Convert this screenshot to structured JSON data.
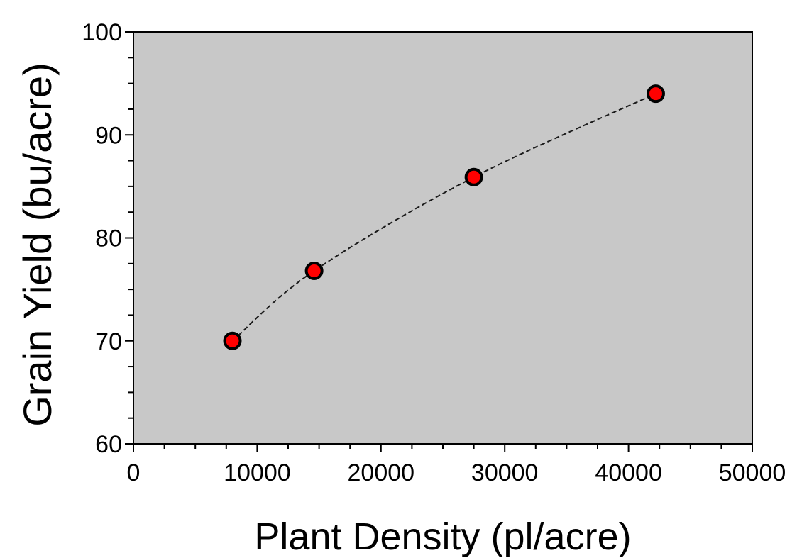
{
  "chart_data": {
    "type": "scatter",
    "title": "",
    "xlabel": "Plant Density (pl/acre)",
    "ylabel": "Grain Yield (bu/acre)",
    "xlim": [
      0,
      50000
    ],
    "ylim": [
      60,
      100
    ],
    "x_ticks": [
      0,
      10000,
      20000,
      30000,
      40000,
      50000
    ],
    "y_ticks": [
      60,
      70,
      80,
      90,
      100
    ],
    "x_minor_step": 2500,
    "y_minor_step": 2.5,
    "grid": false,
    "legend": "none",
    "plot_background": "#c8c8c8",
    "marker_color": "#ff0000",
    "marker_edge_color": "#000000",
    "trendline_style": "dashed",
    "series": [
      {
        "x": [
          8000,
          14600,
          27500,
          42200
        ],
        "y": [
          70.0,
          76.8,
          85.9,
          94.0
        ]
      }
    ]
  }
}
